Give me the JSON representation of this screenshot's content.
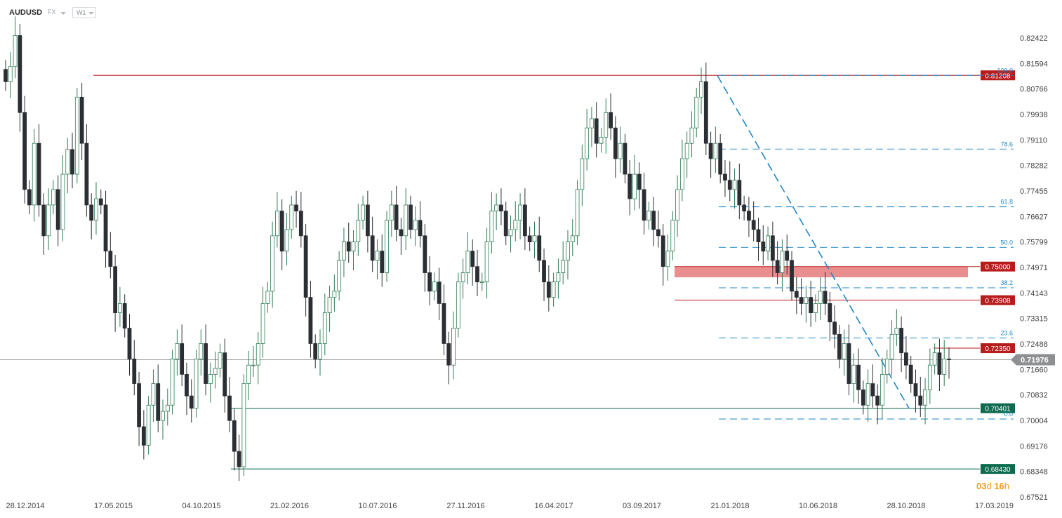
{
  "toolbar": {
    "symbol": "AUDUSD",
    "market": "FX",
    "timeframe": "W1"
  },
  "countdown": {
    "days": "03",
    "days_unit": "d",
    "hours": "16",
    "hours_unit": "h"
  },
  "colors": {
    "up": "#ffffff",
    "up_border": "#2f7d54",
    "down": "#2b2e33",
    "resistance": "#b71c1c",
    "support": "#0e6b4f",
    "fib": "#1f86c8",
    "zone": "#e57373"
  },
  "chart_data": {
    "type": "candlestick",
    "title": "",
    "ylim": [
      0.6752,
      0.8337
    ],
    "y_ticks": [
      "0.82422",
      "0.81594",
      "0.80766",
      "0.79938",
      "0.79110",
      "0.78282",
      "0.77455",
      "0.76627",
      "0.75799",
      "0.74971",
      "0.74143",
      "0.73315",
      "0.72488",
      "0.71660",
      "0.70832",
      "0.70004",
      "0.69176",
      "0.68348",
      "0.67521"
    ],
    "x_ticks": [
      "28.12.2014",
      "17.05.2015",
      "04.10.2015",
      "21.02.2016",
      "10.07.2016",
      "27.11.2016",
      "16.04.2017",
      "03.09.2017",
      "21.01.2018",
      "10.06.2018",
      "28.10.2018",
      "17.03.2019"
    ],
    "current_price": "0.71976",
    "horizontal_levels": [
      {
        "label": "0.81208",
        "value": 0.81208,
        "kind": "resistance"
      },
      {
        "label": "0.75000",
        "value": 0.75,
        "kind": "resistance"
      },
      {
        "label": "0.73908",
        "value": 0.73908,
        "kind": "resistance"
      },
      {
        "label": "0.72350",
        "value": 0.7235,
        "kind": "resistance"
      },
      {
        "label": "0.70401",
        "value": 0.70401,
        "kind": "support"
      },
      {
        "label": "0.68430",
        "value": 0.6843,
        "kind": "support"
      }
    ],
    "resistance_zone": {
      "from": 0.7465,
      "to": 0.75
    },
    "fibonacci": [
      {
        "label": "100.0",
        "value": 0.81208
      },
      {
        "label": "78.6",
        "value": 0.78814
      },
      {
        "label": "61.8",
        "value": 0.7694
      },
      {
        "label": "50.0",
        "value": 0.75625
      },
      {
        "label": "38.2",
        "value": 0.7431
      },
      {
        "label": "23.6",
        "value": 0.72683
      },
      {
        "label": "0.0",
        "value": 0.7005
      }
    ],
    "trendline": {
      "from": 0.812,
      "to": 0.704
    },
    "weekly_closes_approx": [
      0.81,
      0.815,
      0.825,
      0.8,
      0.775,
      0.77,
      0.79,
      0.77,
      0.76,
      0.77,
      0.775,
      0.762,
      0.78,
      0.788,
      0.78,
      0.805,
      0.79,
      0.77,
      0.765,
      0.772,
      0.77,
      0.755,
      0.75,
      0.735,
      0.738,
      0.73,
      0.72,
      0.712,
      0.698,
      0.692,
      0.705,
      0.712,
      0.7,
      0.703,
      0.705,
      0.72,
      0.725,
      0.715,
      0.708,
      0.704,
      0.72,
      0.725,
      0.712,
      0.715,
      0.717,
      0.722,
      0.708,
      0.7,
      0.69,
      0.685,
      0.712,
      0.718,
      0.718,
      0.725,
      0.738,
      0.742,
      0.76,
      0.768,
      0.755,
      0.762,
      0.77,
      0.768,
      0.76,
      0.74,
      0.725,
      0.72,
      0.725,
      0.735,
      0.74,
      0.742,
      0.752,
      0.758,
      0.755,
      0.758,
      0.765,
      0.77,
      0.76,
      0.752,
      0.755,
      0.748,
      0.765,
      0.77,
      0.762,
      0.76,
      0.77,
      0.762,
      0.765,
      0.76,
      0.748,
      0.742,
      0.745,
      0.738,
      0.725,
      0.718,
      0.73,
      0.745,
      0.748,
      0.755,
      0.75,
      0.745,
      0.745,
      0.758,
      0.768,
      0.77,
      0.768,
      0.76,
      0.762,
      0.765,
      0.77,
      0.76,
      0.758,
      0.76,
      0.752,
      0.745,
      0.74,
      0.745,
      0.748,
      0.752,
      0.758,
      0.76,
      0.775,
      0.785,
      0.795,
      0.798,
      0.79,
      0.792,
      0.8,
      0.795,
      0.785,
      0.79,
      0.78,
      0.772,
      0.78,
      0.775,
      0.765,
      0.768,
      0.762,
      0.76,
      0.75,
      0.755,
      0.765,
      0.775,
      0.785,
      0.79,
      0.795,
      0.805,
      0.81,
      0.79,
      0.785,
      0.79,
      0.78,
      0.778,
      0.775,
      0.778,
      0.77,
      0.768,
      0.765,
      0.762,
      0.758,
      0.755,
      0.76,
      0.752,
      0.748,
      0.755,
      0.752,
      0.742,
      0.74,
      0.738,
      0.74,
      0.735,
      0.738,
      0.742,
      0.738,
      0.732,
      0.728,
      0.72,
      0.725,
      0.712,
      0.718,
      0.71,
      0.705,
      0.712,
      0.708,
      0.705,
      0.715,
      0.72,
      0.728,
      0.73,
      0.722,
      0.718,
      0.712,
      0.708,
      0.705,
      0.71,
      0.718,
      0.722,
      0.715,
      0.72,
      0.7198
    ]
  }
}
